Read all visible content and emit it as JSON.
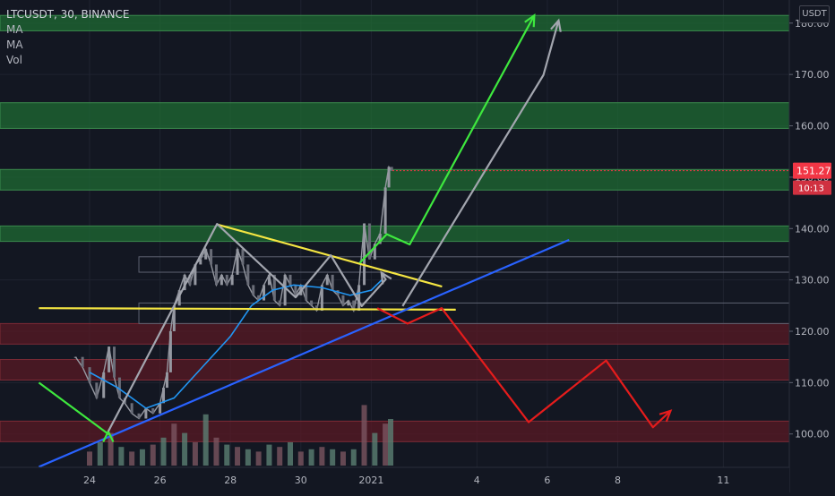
{
  "header": {
    "symbol": "LTCUSDT, 30, BINANCE",
    "indicators": [
      "MA",
      "MA",
      "Vol"
    ],
    "currency": "USDT"
  },
  "colors": {
    "background": "#131722",
    "grid": "#1f2330",
    "support_zone": "#1f6b33",
    "resistance_zone": "#5a1a24",
    "up_candle": "#9598a1",
    "down_candle": "#6a6d78",
    "ma_line": "#2196f3",
    "trendline_yellow": "#f5e642",
    "trendline_blue": "#2962ff",
    "projection_green": "#3ee83e",
    "projection_gray": "#a3a6af",
    "projection_red": "#e51c1c",
    "price_label": "#f23645"
  },
  "chart_data": {
    "type": "candlestick",
    "symbol": "LTCUSDT",
    "interval": "30",
    "exchange": "BINANCE",
    "y_axis": {
      "ticks": [
        100,
        110,
        120,
        130,
        140,
        150,
        160,
        170,
        180
      ],
      "tick_labels": [
        "100.00",
        "110.00",
        "120.00",
        "130.00",
        "140.00",
        "150.00",
        "160.00",
        "170.00",
        "180.00"
      ],
      "range": [
        93.5,
        184.5
      ]
    },
    "x_axis": {
      "ticks": [
        "24",
        "26",
        "28",
        "30",
        "2021",
        "4",
        "6",
        "8",
        "11"
      ]
    },
    "last_price": "151.27",
    "countdown": "10:13",
    "price_series": [
      [
        -0.4,
        115
      ],
      [
        -0.2,
        113
      ],
      [
        0,
        110
      ],
      [
        0.2,
        107
      ],
      [
        0.4,
        112
      ],
      [
        0.55,
        117
      ],
      [
        0.7,
        111
      ],
      [
        0.85,
        107
      ],
      [
        1,
        106
      ],
      [
        1.2,
        104
      ],
      [
        1.4,
        103
      ],
      [
        1.6,
        105
      ],
      [
        1.8,
        104
      ],
      [
        2,
        106
      ],
      [
        2.1,
        109
      ],
      [
        2.2,
        112
      ],
      [
        2.3,
        120
      ],
      [
        2.4,
        125
      ],
      [
        2.55,
        128
      ],
      [
        2.7,
        131
      ],
      [
        2.85,
        129
      ],
      [
        3,
        133
      ],
      [
        3.15,
        134
      ],
      [
        3.3,
        136
      ],
      [
        3.45,
        133
      ],
      [
        3.6,
        129
      ],
      [
        3.75,
        131
      ],
      [
        3.9,
        129
      ],
      [
        4.05,
        131
      ],
      [
        4.2,
        136
      ],
      [
        4.35,
        133
      ],
      [
        4.5,
        129
      ],
      [
        4.65,
        127
      ],
      [
        4.8,
        126
      ],
      [
        4.95,
        129
      ],
      [
        5.1,
        131
      ],
      [
        5.25,
        126
      ],
      [
        5.4,
        125
      ],
      [
        5.55,
        131
      ],
      [
        5.7,
        129
      ],
      [
        5.85,
        127
      ],
      [
        6,
        129
      ],
      [
        6.15,
        126
      ],
      [
        6.3,
        125
      ],
      [
        6.45,
        124
      ],
      [
        6.6,
        129
      ],
      [
        6.75,
        131
      ],
      [
        6.9,
        128
      ],
      [
        7.05,
        127
      ],
      [
        7.2,
        125
      ],
      [
        7.35,
        126
      ],
      [
        7.5,
        124
      ],
      [
        7.65,
        129
      ],
      [
        7.8,
        141
      ],
      [
        7.95,
        134
      ],
      [
        8.1,
        137
      ],
      [
        8.25,
        139
      ],
      [
        8.4,
        148
      ],
      [
        8.5,
        152
      ],
      [
        8.58,
        151.27
      ]
    ],
    "moving_average": [
      [
        0,
        112
      ],
      [
        0.8,
        109
      ],
      [
        1.6,
        105
      ],
      [
        2.4,
        107
      ],
      [
        3.2,
        113
      ],
      [
        4,
        119
      ],
      [
        4.6,
        125
      ],
      [
        5.2,
        128
      ],
      [
        5.8,
        129
      ],
      [
        6.6,
        128.5
      ],
      [
        7.4,
        127
      ],
      [
        8,
        128
      ],
      [
        8.3,
        130
      ]
    ],
    "zones": {
      "support": [
        [
          178.5,
          181.5
        ],
        [
          159.5,
          164.5
        ],
        [
          147.5,
          151.5
        ],
        [
          137.5,
          140.5
        ]
      ],
      "resistance": [
        [
          117.5,
          121.5
        ],
        [
          110.5,
          114.5
        ],
        [
          98.5,
          102.5
        ]
      ],
      "outline_boxes": [
        [
          131.5,
          134.5
        ],
        [
          121.5,
          125.5
        ]
      ]
    },
    "trendlines": [
      {
        "color": "yellow",
        "points": [
          [
            3.62,
            140.8
          ],
          [
            10.01,
            128.7
          ]
        ]
      },
      {
        "color": "yellow",
        "points": [
          [
            -1.44,
            124.5
          ],
          [
            10.4,
            124.2
          ]
        ]
      },
      {
        "color": "blue",
        "points": [
          [
            -1.44,
            93.6
          ],
          [
            13.62,
            137.8
          ]
        ]
      }
    ],
    "projections": [
      {
        "color": "green",
        "points": [
          [
            -1.44,
            110
          ],
          [
            0.53,
            100
          ],
          [
            0.53,
            100.5
          ]
        ]
      },
      {
        "color": "gray",
        "points": [
          [
            0.53,
            100.5
          ],
          [
            3.62,
            140.9
          ],
          [
            5.85,
            126.6
          ],
          [
            6.85,
            134.8
          ],
          [
            7.73,
            124.9
          ],
          [
            8.41,
            130.1
          ],
          [
            8.29,
            131.4
          ]
        ]
      },
      {
        "color": "green",
        "points": [
          [
            7.67,
            133.3
          ],
          [
            8.44,
            138.9
          ],
          [
            9.09,
            136.9
          ],
          [
            12.63,
            181.5
          ]
        ]
      },
      {
        "color": "gray",
        "points": [
          [
            8.89,
            124.9
          ],
          [
            12.89,
            169.9
          ],
          [
            13.32,
            180.5
          ]
        ]
      },
      {
        "color": "red",
        "points": [
          [
            8.17,
            124.5
          ],
          [
            9.03,
            121.5
          ],
          [
            10.0,
            124.5
          ],
          [
            12.47,
            102.3
          ],
          [
            14.67,
            114.3
          ],
          [
            16.0,
            101.3
          ],
          [
            16.5,
            104.5
          ]
        ]
      }
    ],
    "volume": [
      [
        0,
        6
      ],
      [
        0.3,
        10
      ],
      [
        0.6,
        14
      ],
      [
        0.9,
        8
      ],
      [
        1.2,
        6
      ],
      [
        1.5,
        7
      ],
      [
        1.8,
        9
      ],
      [
        2.1,
        12
      ],
      [
        2.4,
        18
      ],
      [
        2.7,
        14
      ],
      [
        3,
        10
      ],
      [
        3.3,
        22
      ],
      [
        3.6,
        12
      ],
      [
        3.9,
        9
      ],
      [
        4.2,
        8
      ],
      [
        4.5,
        7
      ],
      [
        4.8,
        6
      ],
      [
        5.1,
        9
      ],
      [
        5.4,
        8
      ],
      [
        5.7,
        10
      ],
      [
        6,
        6
      ],
      [
        6.3,
        7
      ],
      [
        6.6,
        8
      ],
      [
        6.9,
        7
      ],
      [
        7.2,
        6
      ],
      [
        7.5,
        7
      ],
      [
        7.8,
        26
      ],
      [
        8.1,
        14
      ],
      [
        8.4,
        18
      ],
      [
        8.55,
        20
      ]
    ]
  }
}
